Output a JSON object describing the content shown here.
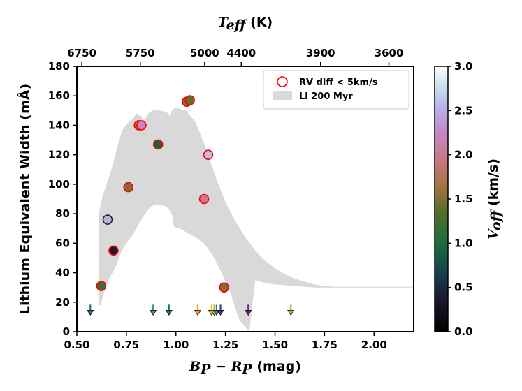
{
  "chart_data": {
    "type": "scatter",
    "xlabel_main": "B",
    "xlabel_sub1": "P",
    "xlabel_minus": " − ",
    "xlabel_main2": "R",
    "xlabel_sub2": "P",
    "xlabel_unit": " (mag)",
    "ylabel": "Lithium Equivalent Width (mÅ)",
    "top_label_main": "T",
    "top_label_sub": "eff",
    "top_label_unit": " (K)",
    "colorbar_label_main": "V",
    "colorbar_label_sub": "off",
    "colorbar_label_unit": " (km/s)",
    "xlim": [
      0.5,
      2.2
    ],
    "ylim": [
      0,
      180
    ],
    "clim": [
      0,
      3.0
    ],
    "x_ticks": [
      "0.50",
      "0.75",
      "1.00",
      "1.25",
      "1.50",
      "1.75",
      "2.00"
    ],
    "y_ticks": [
      "0",
      "20",
      "40",
      "60",
      "80",
      "100",
      "120",
      "140",
      "160",
      "180"
    ],
    "colorbar_ticks": [
      "0.0",
      "0.5",
      "1.0",
      "1.5",
      "2.0",
      "2.5",
      "3.0"
    ],
    "top_ticks": [
      {
        "label": "6750",
        "x": 0.525
      },
      {
        "label": "5750",
        "x": 0.82
      },
      {
        "label": "5000",
        "x": 1.145
      },
      {
        "label": "4400",
        "x": 1.33
      },
      {
        "label": "3900",
        "x": 1.73
      },
      {
        "label": "3600",
        "x": 2.075
      }
    ],
    "legend": [
      {
        "label": "RV diff < 5km/s",
        "marker": "circle-open",
        "color": "#ff0000"
      },
      {
        "label": "Li 200 Myr",
        "marker": "band",
        "color": "#d9d9d9"
      }
    ],
    "band": {
      "upper": [
        [
          0.61,
          80
        ],
        [
          0.63,
          92
        ],
        [
          0.65,
          100
        ],
        [
          0.67,
          108
        ],
        [
          0.69,
          118
        ],
        [
          0.71,
          128
        ],
        [
          0.73,
          137
        ],
        [
          0.76,
          142
        ],
        [
          0.78,
          144
        ],
        [
          0.8,
          148
        ],
        [
          0.82,
          147
        ],
        [
          0.84,
          143
        ],
        [
          0.86,
          148
        ],
        [
          0.88,
          150
        ],
        [
          0.92,
          150
        ],
        [
          0.95,
          149
        ],
        [
          0.97,
          147
        ],
        [
          0.985,
          151
        ],
        [
          1.0,
          152
        ],
        [
          1.05,
          150
        ],
        [
          1.1,
          142
        ],
        [
          1.15,
          125
        ],
        [
          1.2,
          105
        ],
        [
          1.25,
          88
        ],
        [
          1.3,
          75
        ],
        [
          1.35,
          64
        ],
        [
          1.4,
          55
        ],
        [
          1.45,
          48
        ],
        [
          1.5,
          43
        ],
        [
          1.55,
          39
        ],
        [
          1.6,
          36
        ],
        [
          1.65,
          34
        ],
        [
          1.7,
          32
        ],
        [
          1.75,
          31
        ],
        [
          1.8,
          30.5
        ],
        [
          2.2,
          30.5
        ]
      ],
      "lower": [
        [
          2.2,
          30
        ],
        [
          1.9,
          30
        ],
        [
          1.8,
          30
        ],
        [
          1.7,
          30
        ],
        [
          1.6,
          31
        ],
        [
          1.5,
          32
        ],
        [
          1.45,
          33
        ],
        [
          1.4,
          35
        ],
        [
          1.37,
          0
        ],
        [
          1.32,
          8
        ],
        [
          1.27,
          28
        ],
        [
          1.22,
          43
        ],
        [
          1.18,
          53
        ],
        [
          1.14,
          60
        ],
        [
          1.1,
          64
        ],
        [
          1.06,
          67
        ],
        [
          1.02,
          70
        ],
        [
          0.99,
          71
        ],
        [
          0.985,
          78
        ],
        [
          0.97,
          82
        ],
        [
          0.95,
          85
        ],
        [
          0.92,
          86
        ],
        [
          0.89,
          86
        ],
        [
          0.86,
          83
        ],
        [
          0.83,
          77
        ],
        [
          0.8,
          70
        ],
        [
          0.78,
          65
        ],
        [
          0.76,
          62
        ],
        [
          0.74,
          58
        ],
        [
          0.72,
          53
        ],
        [
          0.7,
          45
        ],
        [
          0.68,
          40
        ],
        [
          0.66,
          35
        ],
        [
          0.64,
          28
        ],
        [
          0.62,
          18
        ],
        [
          0.61,
          18
        ]
      ]
    },
    "points": [
      {
        "x": 0.623,
        "y": 31,
        "v": 1.2,
        "rv": true
      },
      {
        "x": 0.655,
        "y": 76,
        "v": 2.5,
        "rv": false
      },
      {
        "x": 0.685,
        "y": 55,
        "v": 0.4,
        "rv": true
      },
      {
        "x": 0.76,
        "y": 98,
        "v": 1.5,
        "rv": true
      },
      {
        "x": 0.813,
        "y": 140,
        "v": 1.7,
        "rv": true
      },
      {
        "x": 0.826,
        "y": 140,
        "v": 2.2,
        "rv": true
      },
      {
        "x": 0.91,
        "y": 127,
        "v": 0.9,
        "rv": true
      },
      {
        "x": 1.055,
        "y": 156,
        "v": 1.5,
        "rv": true
      },
      {
        "x": 1.07,
        "y": 157,
        "v": 1.4,
        "rv": true
      },
      {
        "x": 1.142,
        "y": 90,
        "v": 2.0,
        "rv": true
      },
      {
        "x": 1.163,
        "y": 120,
        "v": 2.6,
        "rv": true
      },
      {
        "x": 1.243,
        "y": 30,
        "v": 1.5,
        "rv": true
      }
    ],
    "upper_limits": [
      {
        "x": 0.568,
        "y": 15,
        "color": "#2f6f82"
      },
      {
        "x": 0.885,
        "y": 15,
        "color": "#3c9a6a"
      },
      {
        "x": 0.965,
        "y": 15,
        "color": "#17766f"
      },
      {
        "x": 1.11,
        "y": 15,
        "color": "#f0a800"
      },
      {
        "x": 1.18,
        "y": 15,
        "color": "#e9c700"
      },
      {
        "x": 1.193,
        "y": 15,
        "color": "#c6b43a"
      },
      {
        "x": 1.205,
        "y": 15,
        "color": "#3b7ba8"
      },
      {
        "x": 1.225,
        "y": 15,
        "color": "#3a4c62"
      },
      {
        "x": 1.365,
        "y": 15,
        "color": "#6a2a80"
      },
      {
        "x": 1.58,
        "y": 15,
        "color": "#b3a83a"
      }
    ]
  }
}
